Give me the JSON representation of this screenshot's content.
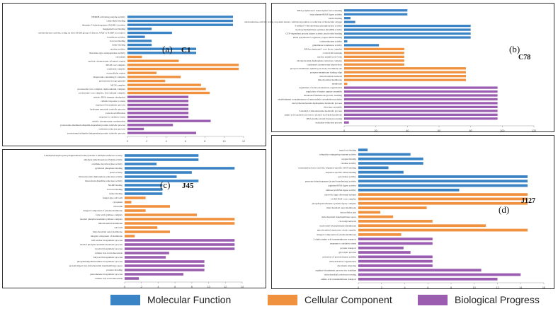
{
  "colors": {
    "mf": "#3a83c4",
    "cc": "#f0913f",
    "bp": "#9a5db0"
  },
  "legend": [
    {
      "label": "Molecular Function",
      "color": "#3a83c4"
    },
    {
      "label": "Cellular Component",
      "color": "#f0913f"
    },
    {
      "label": "Biological Progress",
      "color": "#9a5db0"
    }
  ],
  "chart_data": [
    {
      "type": "bar",
      "orientation": "horizontal",
      "panel_label": "(a)",
      "sample": "C1",
      "ticks": [
        "0",
        "2",
        "4",
        "6",
        "8",
        "10",
        "12"
      ],
      "xlim": [
        0,
        12
      ],
      "bars": [
        {
          "category": "NEDD8 activating enzyme activity",
          "value": 10.9,
          "group": "mf"
        },
        {
          "category": "calmodulin binding",
          "value": 10.9,
          "group": "mf"
        },
        {
          "category": "thiamine 5-dehydrogenase (NADP+) activity",
          "value": 10.9,
          "group": "mf"
        },
        {
          "category": "magnesium ion binding",
          "value": 2.5,
          "group": "mf"
        },
        {
          "category": "oxidoreductase activity, acting on the CH-OH group of donors, NAD or NADP as acceptor",
          "value": 4.6,
          "group": "mf"
        },
        {
          "category": "transferase activity",
          "value": 1.8,
          "group": "mf"
        },
        {
          "category": "iron ion binding",
          "value": 2.5,
          "group": "mf"
        },
        {
          "category": "heme binding",
          "value": 2.5,
          "group": "mf"
        },
        {
          "category": "catalase activity",
          "value": 7.1,
          "group": "mf"
        },
        {
          "category": "threonine-type endopeptidase activity",
          "value": 7.1,
          "group": "mf"
        },
        {
          "category": "cytoplasm",
          "value": 1.5,
          "group": "cc"
        },
        {
          "category": "nuclear chromosome, telomeric region",
          "value": 5.3,
          "group": "cc"
        },
        {
          "category": "MCM core complex",
          "value": 11.5,
          "group": "cc"
        },
        {
          "category": "condensin complex",
          "value": 11.5,
          "group": "cc"
        },
        {
          "category": "extracellular region",
          "value": 3.0,
          "group": "cc"
        },
        {
          "category": "chaperonin-containing T-complex",
          "value": 5.5,
          "group": "cc"
        },
        {
          "category": "proteasome storage granule",
          "value": 3.9,
          "group": "cc"
        },
        {
          "category": "MCM complex",
          "value": 7.6,
          "group": "cc"
        },
        {
          "category": "proteasome core complex, alpha-subunit complex",
          "value": 8.1,
          "group": "cc"
        },
        {
          "category": "proteasome core complex, beta-subunit complex",
          "value": 8.5,
          "group": "cc"
        },
        {
          "category": "mitotic DNA damage checkpoint",
          "value": 6.3,
          "group": "bp"
        },
        {
          "category": "cellular response to stress",
          "value": 6.3,
          "group": "bp"
        },
        {
          "category": "ergosterol biosynthetic process",
          "value": 6.3,
          "group": "bp"
        },
        {
          "category": "hydrogen peroxide catabolic process",
          "value": 6.3,
          "group": "bp"
        },
        {
          "category": "vacuole acidification",
          "value": 6.3,
          "group": "bp"
        },
        {
          "category": "response to oxidative stress",
          "value": 6.3,
          "group": "bp"
        },
        {
          "category": "mitotic chromosome condensation",
          "value": 8.6,
          "group": "bp"
        },
        {
          "category": "proteasome-mediated ubiquitin-dependent protein catabolic process",
          "value": 4.7,
          "group": "bp"
        },
        {
          "category": "oxidation-reduction process",
          "value": 1.7,
          "group": "bp"
        },
        {
          "category": "proteasomal ubiquitin-independent protein catabolic process",
          "value": 7.1,
          "group": "bp"
        }
      ]
    },
    {
      "type": "bar",
      "orientation": "horizontal",
      "panel_label": "(b)",
      "sample": "C78",
      "ticks": [
        "0",
        "20",
        "40",
        "60",
        "80",
        "100",
        "120"
      ],
      "xlim": [
        0,
        120
      ],
      "bars": [
        {
          "category": "RNA polymerase I transcription factor binding",
          "value": 40,
          "group": "mf"
        },
        {
          "category": "beta-alanine-tRNA ligase activity",
          "value": 40,
          "group": "mf"
        },
        {
          "category": "biotin binding",
          "value": 4,
          "group": "mf"
        },
        {
          "category": "oxidoreductase activity, acting on paired donors, with incorporation or reduction of molecular oxygen",
          "value": 7,
          "group": "mf"
        },
        {
          "category": "S-methyl-5-thioadenosine phosphorylase activity",
          "value": 80,
          "group": "mf"
        },
        {
          "category": "hydroxymethylbilane synthase (NADH) activity",
          "value": 80,
          "group": "mf"
        },
        {
          "category": "GTP-dependent protein kinase activity; nucleotide binding",
          "value": 80,
          "group": "mf"
        },
        {
          "category": "RNA polymerase I regulatory region DNA binding",
          "value": 80,
          "group": "mf"
        },
        {
          "category": "oxidoreductase activity",
          "value": 2,
          "group": "mf"
        },
        {
          "category": "glutathione transferase activity",
          "value": 22,
          "group": "mf"
        },
        {
          "category": "RNA polymerase I core factor complex",
          "value": 38,
          "group": "cc"
        },
        {
          "category": "cortical microtubule",
          "value": 38,
          "group": "cc"
        },
        {
          "category": "nuclear spindle pole body",
          "value": 38,
          "group": "cc"
        },
        {
          "category": "ribonucleoside-diphosphate reductase complex",
          "value": 38,
          "group": "cc"
        },
        {
          "category": "condensed chromosome kinetochore",
          "value": 38,
          "group": "cc"
        },
        {
          "category": "prospore membrane spindle pole body attachment site",
          "value": 77,
          "group": "cc"
        },
        {
          "category": "prospore membrane leading edge",
          "value": 77,
          "group": "cc"
        },
        {
          "category": "mitochondrial nucleoid",
          "value": 77,
          "group": "cc"
        },
        {
          "category": "mitochondrial membrane",
          "value": 77,
          "group": "cc"
        },
        {
          "category": "membrane",
          "value": 2,
          "group": "cc"
        },
        {
          "category": "regulation of actin cytoskeleton organization",
          "value": 97,
          "group": "bp"
        },
        {
          "category": "regulation of heptre rupture assembly",
          "value": 97,
          "group": "bp"
        },
        {
          "category": "attenuated filamentous growth, budding",
          "value": 97,
          "group": "bp"
        },
        {
          "category": "establishment or maintenance of microtubule cytoskeleton polarity",
          "value": 97,
          "group": "bp"
        },
        {
          "category": "deoxyribonucleoside diphosphate metabolic process",
          "value": 97,
          "group": "bp"
        },
        {
          "category": "ribosome assembly",
          "value": 97,
          "group": "bp"
        },
        {
          "category": "S-methyl-5-thioadenosine metabolic process",
          "value": 97,
          "group": "bp"
        },
        {
          "category": "amino acid catabolic process to alcohol via Ehrlich pathway",
          "value": 97,
          "group": "bp"
        },
        {
          "category": "DNA double-strand break processing",
          "value": 97,
          "group": "bp"
        },
        {
          "category": "oxidation-reduction process",
          "value": 3,
          "group": "bp"
        }
      ]
    },
    {
      "type": "bar",
      "orientation": "horizontal",
      "panel_label": "(c)",
      "sample": "J45",
      "ticks": [
        "0",
        "2",
        "4",
        "6",
        "8",
        "10",
        "12",
        "14"
      ],
      "xlim": [
        0,
        14
      ],
      "bars": [
        {
          "category": "5-methyltetrahydropteroyltriglutamate-homocysteine S-methyltransferase activity",
          "value": 8.8,
          "group": "mf"
        },
        {
          "category": "aldehyde dehydrogenase (NAD) activity",
          "value": 8.8,
          "group": "mf"
        },
        {
          "category": "ornithine decarboxylase activity",
          "value": 3.8,
          "group": "mf"
        },
        {
          "category": "pyridoxal phosphate binding",
          "value": 13.1,
          "group": "mf"
        },
        {
          "category": "porin activity",
          "value": 8.0,
          "group": "mf"
        },
        {
          "category": "ribonucleoside-diphosphate reductase activity",
          "value": 6.2,
          "group": "mf"
        },
        {
          "category": "thioredoxin disulfide reductase activity",
          "value": 8.8,
          "group": "mf"
        },
        {
          "category": "NADP binding",
          "value": 4.5,
          "group": "mf"
        },
        {
          "category": "iron ion binding",
          "value": 4.5,
          "group": "mf"
        },
        {
          "category": "heme binding",
          "value": 4.5,
          "group": "mf"
        },
        {
          "category": "fungal-type cell wall",
          "value": 2.5,
          "group": "cc"
        },
        {
          "category": "cytoplasm",
          "value": 0.8,
          "group": "cc"
        },
        {
          "category": "ribosome",
          "value": 5.4,
          "group": "cc"
        },
        {
          "category": "integral component of plasma membrane",
          "value": 2.5,
          "group": "cc"
        },
        {
          "category": "fatty acid synthase complex",
          "value": 8.6,
          "group": "cc"
        },
        {
          "category": "inositol phosphoceramide synthase complex",
          "value": 13.1,
          "group": "cc"
        },
        {
          "category": "mitochondrial membrane",
          "value": 13.1,
          "group": "cc"
        },
        {
          "category": "cell wall",
          "value": 3.9,
          "group": "cc"
        },
        {
          "category": "mitochondrial outer membrane",
          "value": 5.4,
          "group": "cc"
        },
        {
          "category": "integral component of membrane",
          "value": 1.2,
          "group": "cc"
        },
        {
          "category": "GPI anchor biosynthetic process",
          "value": 13.1,
          "group": "bp"
        },
        {
          "category": "inositol phosphoceramide metabolic process",
          "value": 13.1,
          "group": "bp"
        },
        {
          "category": "inositol biosynthetic process",
          "value": 13.1,
          "group": "bp"
        },
        {
          "category": "cellular iron ion homeostasis",
          "value": 5.3,
          "group": "bp"
        },
        {
          "category": "fatty acid biosynthetic process",
          "value": 4.9,
          "group": "bp"
        },
        {
          "category": "phosphatidylethanolamine biosynthetic process",
          "value": 9.5,
          "group": "bp"
        },
        {
          "category": "protein import into mitochondrial intermembrane space",
          "value": 9.5,
          "group": "bp"
        },
        {
          "category": "protein refolding",
          "value": 9.5,
          "group": "bp"
        },
        {
          "category": "pantothenate biosynthetic process",
          "value": 7.0,
          "group": "bp"
        },
        {
          "category": "cellular iron ion homeostasis",
          "value": 1.7,
          "group": "bp"
        }
      ]
    },
    {
      "type": "bar",
      "orientation": "horizontal",
      "panel_label": "(d)",
      "sample": "J127",
      "ticks": [
        "0",
        "2",
        "4",
        "6",
        "8",
        "10",
        "12",
        "14",
        "16"
      ],
      "xlim": [
        0,
        16
      ],
      "bars": [
        {
          "category": "metal ion binding",
          "value": 0.8,
          "group": "mf"
        },
        {
          "category": "ubiquitin-conjugating enzyme activity",
          "value": 4.5,
          "group": "mf"
        },
        {
          "category": "oxygen binding",
          "value": 5.6,
          "group": "mf"
        },
        {
          "category": "catalase activity",
          "value": 5.6,
          "group": "mf"
        },
        {
          "category": "transcription factor activity, sequence-specific DNA binding",
          "value": 2.6,
          "group": "mf"
        },
        {
          "category": "sequence-specific DNA binding",
          "value": 3.9,
          "group": "mf"
        },
        {
          "category": "peroxidase activity",
          "value": 14.6,
          "group": "mf"
        },
        {
          "category": "pyruvate dehydrogenase (acetyl-transferring) activity",
          "value": 14.6,
          "group": "mf"
        },
        {
          "category": "arginine-tRNA ligase activity",
          "value": 14.6,
          "group": "mf"
        },
        {
          "category": "aminoacyl-tRNA ligase activity",
          "value": 8.7,
          "group": "mf"
        },
        {
          "category": "cytosolic large ribosomal subunit",
          "value": 14.6,
          "group": "cc"
        },
        {
          "category": "CCR4-NOT core complex",
          "value": 14.6,
          "group": "cc"
        },
        {
          "category": "phosphopantothenate-cysteine ligase complex",
          "value": 14.6,
          "group": "cc"
        },
        {
          "category": "mitochondrial outer membrane",
          "value": 5.9,
          "group": "cc"
        },
        {
          "category": "intracellular part",
          "value": 1.9,
          "group": "cc"
        },
        {
          "category": "mitochondrial intermembrane space",
          "value": 3.0,
          "group": "cc"
        },
        {
          "category": "cis-Golgi network",
          "value": 6.4,
          "group": "cc"
        },
        {
          "category": "nucleoside-tetrasubstituted membrane",
          "value": 11.0,
          "group": "cc"
        },
        {
          "category": "mitochondrial respiratory chain complex",
          "value": 14.6,
          "group": "cc"
        },
        {
          "category": "integral component of plasma membrane",
          "value": 3.7,
          "group": "cc"
        },
        {
          "category": "2-alpha amine acid transmembrane transport",
          "value": 6.4,
          "group": "bp"
        },
        {
          "category": "response to oxidative stress",
          "value": 6.4,
          "group": "bp"
        },
        {
          "category": "protein transport",
          "value": 3.9,
          "group": "bp"
        },
        {
          "category": "glycolytic process",
          "value": 4.5,
          "group": "bp"
        },
        {
          "category": "activation of protein kinase activity",
          "value": 6.4,
          "group": "bp"
        },
        {
          "category": "mitochondrion organization",
          "value": 6.4,
          "group": "bp"
        },
        {
          "category": "chromatin silencing",
          "value": 6.4,
          "group": "bp"
        },
        {
          "category": "arginine biosynthetic process via ornithine",
          "value": 10.6,
          "group": "bp"
        },
        {
          "category": "mitochondrial protein processing",
          "value": 14.0,
          "group": "bp"
        },
        {
          "category": "amino acid transmembrane transport",
          "value": 12.0,
          "group": "bp"
        }
      ]
    }
  ]
}
